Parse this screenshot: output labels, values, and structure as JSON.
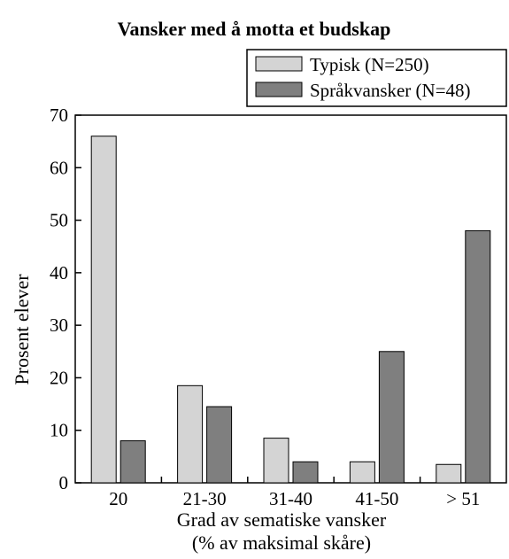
{
  "chart_data": {
    "type": "bar",
    "title": "Vansker med å motta et budskap",
    "xlabel": "Grad av sematiske vansker",
    "xlabel_line2": "(% av maksimal skåre)",
    "ylabel": "Prosent elever",
    "categories": [
      "20",
      "21-30",
      "31-40",
      "41-50",
      "> 51"
    ],
    "series": [
      {
        "name": "Typisk (N=250)",
        "color": "#d4d4d4",
        "values": [
          66,
          18.5,
          8.5,
          4,
          3.5
        ]
      },
      {
        "name": "Språkvansker (N=48)",
        "color": "#7f7f7f",
        "values": [
          8,
          14.5,
          4,
          25,
          48
        ]
      }
    ],
    "ylim": [
      0,
      70
    ],
    "yticks": [
      0,
      10,
      20,
      30,
      40,
      50,
      60,
      70
    ],
    "grid": false,
    "legend_position": "top-right"
  }
}
